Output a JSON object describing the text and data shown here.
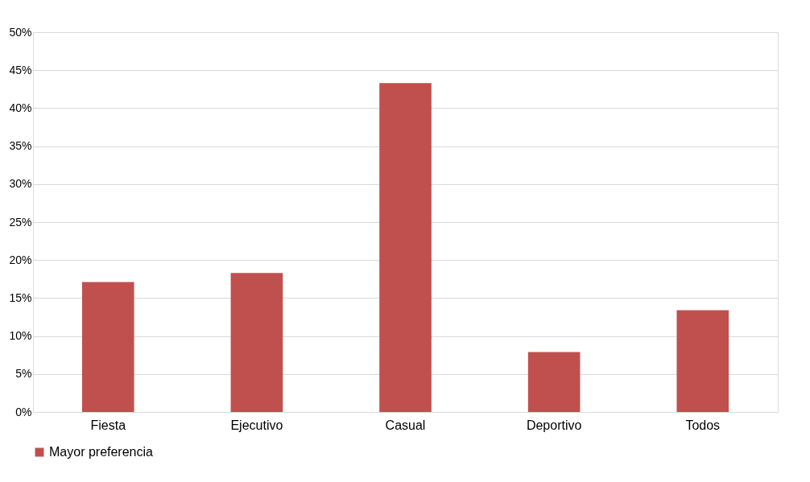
{
  "chart_data": {
    "type": "bar",
    "categories": [
      "Fiesta",
      "Ejecutivo",
      "Casual",
      "Deportivo",
      "Todos"
    ],
    "series": [
      {
        "name": "Mayor preferencia",
        "color": "#c0504d",
        "values": [
          17.1,
          18.3,
          43.3,
          7.9,
          13.4
        ]
      }
    ],
    "ylim": [
      0,
      50
    ],
    "yticks": [
      {
        "value": 0,
        "label": "0%"
      },
      {
        "value": 5,
        "label": "5%"
      },
      {
        "value": 10,
        "label": "10%"
      },
      {
        "value": 15,
        "label": "15%"
      },
      {
        "value": 20,
        "label": "20%"
      },
      {
        "value": 25,
        "label": "25%"
      },
      {
        "value": 30,
        "label": "30%"
      },
      {
        "value": 35,
        "label": "35%"
      },
      {
        "value": 40,
        "label": "40%"
      },
      {
        "value": 45,
        "label": "45%"
      },
      {
        "value": 50,
        "label": "50%"
      }
    ],
    "grid": "y",
    "legend": "bottom"
  }
}
